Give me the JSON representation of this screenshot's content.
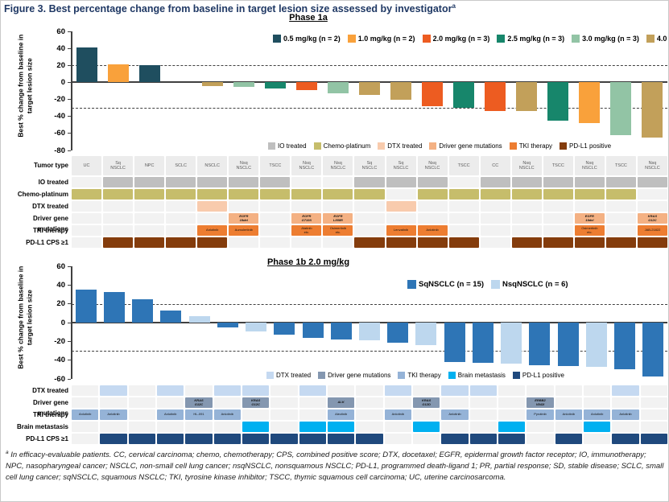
{
  "figure": {
    "title": "Figure 3. Best percentage change from baseline in target lesion size assessed by investigator",
    "title_superscript": "a",
    "footnote_superscript": "a",
    "footnote": "In efficacy-evaluable patients. CC, cervical carcinoma; chemo, chemotherapy; CPS, combined positive score; DTX, docetaxel; EGFR, epidermal growth factor receptor; IO, immunotherapy; NPC, nasopharyngeal cancer; NSCLC, non-small cell lung cancer; nsqNSCLC, nonsquamous NSCLC; PD-L1, programmed death-ligand 1; PR, partial response; SD, stable disease; SCLC, small cell lung cancer; sqNSCLC, squamous NSCLC; TKI, tyrosine kinase inhibitor; TSCC, thymic squamous cell carcinoma; UC, uterine carcinosarcoma."
  },
  "colors": {
    "title_navy": "#1F3864",
    "axis": "#404040",
    "off_cell": "#F2F2F2",
    "tumor_cell": "#ECECEC"
  },
  "chart_data": [
    {
      "type": "bar",
      "title": "Phase 1a",
      "ylabel": "Best % change from baseline in target lesion size",
      "ylim": [
        -80,
        60
      ],
      "yticks": [
        60,
        40,
        20,
        0,
        -20,
        -40,
        -60,
        -80
      ],
      "ref_lines": [
        20,
        -30
      ],
      "legend": [
        {
          "label": "0.5 mg/kg (n = 2)",
          "color": "#1F4E5F"
        },
        {
          "label": "1.0 mg/kg (n = 2)",
          "color": "#F9A13B"
        },
        {
          "label": "2.0 mg/kg (n = 3)",
          "color": "#ED5C21"
        },
        {
          "label": "2.5 mg/kg (n = 3)",
          "color": "#17866B"
        },
        {
          "label": "3.0 mg/kg (n = 3)",
          "color": "#92C4A5"
        },
        {
          "label": "4.0 mg/kg (n = 6)",
          "color": "#C2A05A"
        }
      ],
      "bars": [
        {
          "v": 41,
          "s": 0
        },
        {
          "v": 21,
          "s": 1
        },
        {
          "v": 20,
          "s": 0
        },
        {
          "v": 0,
          "s": 5
        },
        {
          "v": -4,
          "s": 5
        },
        {
          "v": -5,
          "s": 4
        },
        {
          "v": -7,
          "s": 3
        },
        {
          "v": -9,
          "s": 2
        },
        {
          "v": -13,
          "s": 4
        },
        {
          "v": -15,
          "s": 5
        },
        {
          "v": -20,
          "s": 5
        },
        {
          "v": -28,
          "s": 2
        },
        {
          "v": -30,
          "s": 3
        },
        {
          "v": -34,
          "s": 2
        },
        {
          "v": -34,
          "s": 5
        },
        {
          "v": -45,
          "s": 3
        },
        {
          "v": -48,
          "s": 1
        },
        {
          "v": -62,
          "s": 4
        },
        {
          "v": -65,
          "s": 5
        }
      ],
      "grid": {
        "row_labels": [
          "Tumor type",
          "IO treated",
          "Chemo-platinum",
          "DTX treated",
          "Driver gene mutations",
          "TKI therapy",
          "PD-L1 CPS ≥1"
        ],
        "tumor_type": [
          "UC",
          "Sq\nNSCLC",
          "NPC",
          "SCLC",
          "NSCLC",
          "Nsq\nNSCLC",
          "TSCC",
          "Nsq\nNSCLC",
          "Nsq\nNSCLC",
          "Sq\nNSCLC",
          "Sq\nNSCLC",
          "Nsq\nNSCLC",
          "TSCC",
          "CC",
          "Nsq\nNSCLC",
          "TSCC",
          "Nsq\nNSCLC",
          "TSCC",
          "Nsq\nNSCLC"
        ],
        "io_treated": [
          0,
          1,
          1,
          1,
          1,
          1,
          1,
          0,
          0,
          1,
          1,
          1,
          0,
          1,
          1,
          1,
          1,
          1,
          1
        ],
        "chemo_platinum": [
          1,
          1,
          1,
          1,
          1,
          1,
          1,
          1,
          1,
          1,
          0,
          1,
          1,
          1,
          1,
          1,
          1,
          1,
          0
        ],
        "dtx_treated": [
          0,
          0,
          0,
          0,
          1,
          0,
          0,
          0,
          0,
          0,
          1,
          0,
          0,
          0,
          0,
          0,
          0,
          0,
          0
        ],
        "driver_gene": [
          "",
          "",
          "",
          "",
          "",
          "EGFR\n19del",
          "",
          "EGFR\nG719X",
          "EGFR\nL858R",
          "",
          "",
          "",
          "",
          "",
          "",
          "",
          "EGFR\n19del",
          "",
          "KRAS\nG12C"
        ],
        "tki_therapy": [
          "",
          "",
          "",
          "",
          "Anlotinib",
          "Aumolertinib",
          "",
          "Afatinib\netc.",
          "Osimertinib\netc.",
          "",
          "Lenvatinib",
          "Anlotinib",
          "",
          "",
          "",
          "",
          "Osimertinib\netc.",
          "",
          "JAB-21822"
        ],
        "pdl1": [
          0,
          1,
          1,
          1,
          1,
          0,
          0,
          0,
          0,
          1,
          1,
          1,
          1,
          0,
          1,
          1,
          1,
          1,
          1
        ],
        "legend": [
          {
            "label": "IO treated",
            "color": "#BFBFBF"
          },
          {
            "label": "Chemo-platinum",
            "color": "#C6BD6B"
          },
          {
            "label": "DTX treated",
            "color": "#F8CBAD"
          },
          {
            "label": "Driver gene mutations",
            "color": "#F4B183"
          },
          {
            "label": "TKI therapy",
            "color": "#ED7D31"
          },
          {
            "label": "PD-L1 positive",
            "color": "#843C0C"
          }
        ]
      }
    },
    {
      "type": "bar",
      "title": "Phase 1b 2.0 mg/kg",
      "ylabel": "Best % change from baseline in target lesion size",
      "ylim": [
        -60,
        60
      ],
      "yticks": [
        60,
        40,
        20,
        0,
        -20,
        -40,
        -60
      ],
      "ref_lines": [
        20,
        -30
      ],
      "legend": [
        {
          "label": "SqNSCLC (n = 15)",
          "color": "#2E75B6"
        },
        {
          "label": "NsqNSCLC (n = 6)",
          "color": "#BDD7EE"
        }
      ],
      "bars": [
        {
          "v": 35,
          "s": 0
        },
        {
          "v": 33,
          "s": 0
        },
        {
          "v": 25,
          "s": 0
        },
        {
          "v": 13,
          "s": 0
        },
        {
          "v": 7,
          "s": 1
        },
        {
          "v": -5,
          "s": 0
        },
        {
          "v": -9,
          "s": 1
        },
        {
          "v": -13,
          "s": 0
        },
        {
          "v": -16,
          "s": 0
        },
        {
          "v": -18,
          "s": 0
        },
        {
          "v": -19,
          "s": 1
        },
        {
          "v": -21,
          "s": 0
        },
        {
          "v": -24,
          "s": 1
        },
        {
          "v": -42,
          "s": 0
        },
        {
          "v": -43,
          "s": 0
        },
        {
          "v": -44,
          "s": 1
        },
        {
          "v": -45,
          "s": 0
        },
        {
          "v": -46,
          "s": 0
        },
        {
          "v": -47,
          "s": 1
        },
        {
          "v": -50,
          "s": 0
        },
        {
          "v": -57,
          "s": 0
        }
      ],
      "grid": {
        "row_labels": [
          "DTX treated",
          "Driver gene mutations",
          "TKI therapy",
          "Brain metastasis",
          "PD-L1 CPS ≥1"
        ],
        "dtx_treated": [
          0,
          1,
          0,
          1,
          0,
          1,
          1,
          0,
          1,
          0,
          0,
          1,
          0,
          1,
          1,
          0,
          0,
          0,
          0,
          1,
          0
        ],
        "driver_gene": [
          "",
          "",
          "",
          "",
          "KRAS\nG12C",
          "",
          "KRAS\nG12C",
          "",
          "",
          "ALK",
          "",
          "",
          "KRAS\nG12D",
          "",
          "",
          "",
          "ERBB2\nV842I",
          "",
          "",
          "",
          ""
        ],
        "tki_therapy": [
          "Anlotinib",
          "Anlotinib",
          "",
          "Anlotinib",
          "HL-091",
          "Anlotinib",
          "",
          "",
          "",
          "Alectinib",
          "",
          "Anlotinib",
          "",
          "Anlotinib",
          "",
          "",
          "Pyrotinib",
          "Anlotinib",
          "Anlotinib",
          "Anlotinib",
          ""
        ],
        "brain_metastasis": [
          0,
          0,
          0,
          0,
          0,
          0,
          1,
          0,
          1,
          1,
          0,
          0,
          1,
          0,
          0,
          1,
          0,
          0,
          1,
          0,
          0
        ],
        "pdl1": [
          0,
          1,
          1,
          1,
          1,
          1,
          1,
          1,
          1,
          1,
          1,
          0,
          0,
          1,
          1,
          1,
          0,
          1,
          0,
          1,
          1
        ],
        "legend": [
          {
            "label": "DTX treated",
            "color": "#C5D9F1"
          },
          {
            "label": "Driver gene mutations",
            "color": "#8497B0"
          },
          {
            "label": "TKI therapy",
            "color": "#95B3D7"
          },
          {
            "label": "Brain metastasis",
            "color": "#00B0F0"
          },
          {
            "label": "PD-L1 positive",
            "color": "#1F497D"
          }
        ]
      }
    }
  ]
}
